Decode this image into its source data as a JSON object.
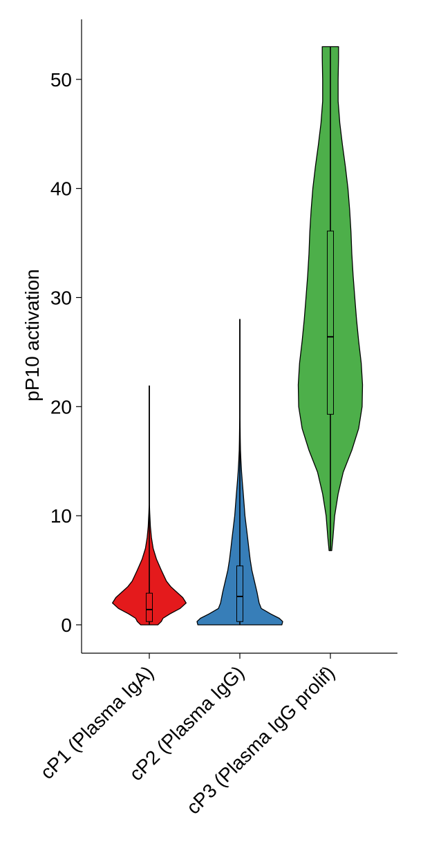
{
  "chart_data": {
    "type": "violin",
    "title": "",
    "xlabel": "",
    "ylabel": "pP10 activation",
    "ylim": [
      -2.6,
      55.5
    ],
    "yticks": [
      "0",
      "10",
      "20",
      "30",
      "40",
      "50"
    ],
    "grid": false,
    "legend": "none",
    "categories": [
      "cP1 (Plasma IgA)",
      "cP2 (Plasma IgG)",
      "cP3 (Plasma IgG prolif)"
    ],
    "series": [
      {
        "color": "#e41a1c",
        "min": 0,
        "q1": 0.3,
        "median": 1.4,
        "q3": 2.9,
        "max": 21.9,
        "density": [
          [
            0,
            0.2
          ],
          [
            0.3,
            0.28
          ],
          [
            0.6,
            0.32
          ],
          [
            1,
            0.48
          ],
          [
            1.5,
            0.72
          ],
          [
            2,
            0.86
          ],
          [
            2.5,
            0.78
          ],
          [
            3,
            0.64
          ],
          [
            3.5,
            0.5
          ],
          [
            4,
            0.4
          ],
          [
            5,
            0.28
          ],
          [
            6,
            0.17
          ],
          [
            7,
            0.09
          ],
          [
            8,
            0.05
          ],
          [
            9,
            0.025
          ],
          [
            10.3,
            0.01
          ],
          [
            11,
            0.004
          ],
          [
            21.9,
            0.004
          ]
        ]
      },
      {
        "color": "#377eb8",
        "min": 0,
        "q1": 0.3,
        "median": 2.6,
        "q3": 5.4,
        "max": 28.0,
        "density": [
          [
            0,
            0.98
          ],
          [
            0.3,
            1.0
          ],
          [
            0.6,
            0.92
          ],
          [
            1,
            0.72
          ],
          [
            1.5,
            0.5
          ],
          [
            2,
            0.45
          ],
          [
            3,
            0.4
          ],
          [
            4,
            0.34
          ],
          [
            5,
            0.28
          ],
          [
            6,
            0.24
          ],
          [
            7,
            0.21
          ],
          [
            8,
            0.18
          ],
          [
            9,
            0.15
          ],
          [
            10,
            0.12
          ],
          [
            11,
            0.1
          ],
          [
            12,
            0.08
          ],
          [
            13,
            0.06
          ],
          [
            14,
            0.04
          ],
          [
            15,
            0.025
          ],
          [
            16,
            0.015
          ],
          [
            17,
            0.01
          ],
          [
            18,
            0.007
          ],
          [
            19,
            0.004
          ],
          [
            28,
            0.004
          ]
        ]
      },
      {
        "color": "#4daf4a",
        "min": 6.8,
        "q1": 19.3,
        "median": 26.4,
        "q3": 36.1,
        "max": 53.0,
        "density": [
          [
            6.8,
            0.03
          ],
          [
            8,
            0.06
          ],
          [
            10,
            0.1
          ],
          [
            12,
            0.18
          ],
          [
            14,
            0.3
          ],
          [
            16,
            0.5
          ],
          [
            18,
            0.66
          ],
          [
            20,
            0.74
          ],
          [
            22,
            0.75
          ],
          [
            24,
            0.72
          ],
          [
            26,
            0.66
          ],
          [
            28,
            0.61
          ],
          [
            30,
            0.57
          ],
          [
            32,
            0.53
          ],
          [
            34,
            0.5
          ],
          [
            36,
            0.48
          ],
          [
            38,
            0.45
          ],
          [
            40,
            0.41
          ],
          [
            42,
            0.35
          ],
          [
            44,
            0.28
          ],
          [
            46,
            0.22
          ],
          [
            48,
            0.18
          ],
          [
            50,
            0.18
          ],
          [
            52,
            0.19
          ],
          [
            53,
            0.19
          ]
        ]
      }
    ]
  }
}
